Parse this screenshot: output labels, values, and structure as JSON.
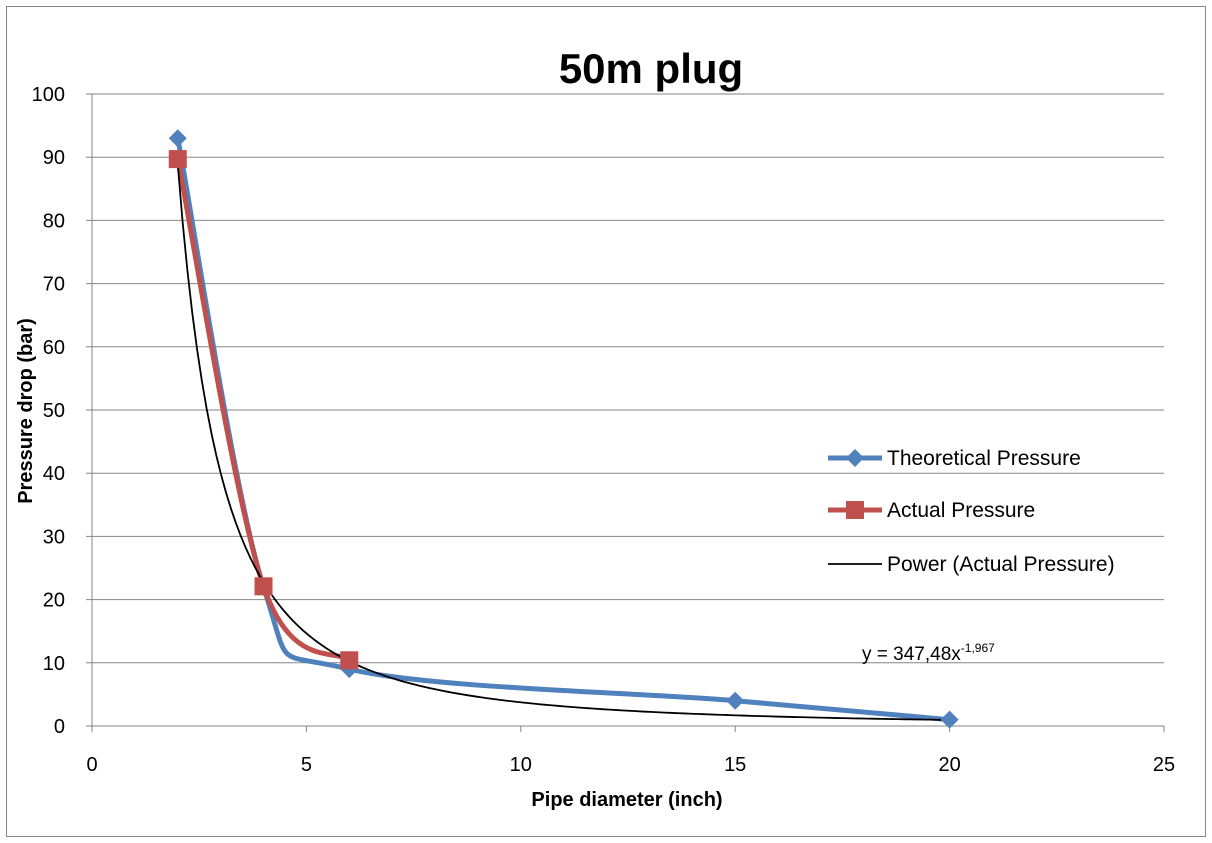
{
  "chart_data": {
    "type": "scatter",
    "title": "50m plug",
    "xlabel": "Pipe diameter (inch)",
    "ylabel": "Pressure drop (bar)",
    "xlim": [
      0,
      25
    ],
    "ylim": [
      0,
      100
    ],
    "xticks": [
      0,
      5,
      10,
      15,
      20,
      25
    ],
    "yticks": [
      0,
      10,
      20,
      30,
      40,
      50,
      60,
      70,
      80,
      90,
      100
    ],
    "grid": "horizontal",
    "legend_position": "right",
    "series": [
      {
        "name": "Theoretical Pressure",
        "color": "#4F81BD",
        "marker": "diamond",
        "smooth": true,
        "x": [
          2,
          4,
          6,
          15,
          20
        ],
        "y": [
          93,
          22,
          9,
          4,
          1
        ]
      },
      {
        "name": "Actual Pressure",
        "color": "#C0504D",
        "marker": "square",
        "smooth": true,
        "x": [
          2,
          4,
          6
        ],
        "y": [
          89.7,
          22.1,
          10.4
        ]
      },
      {
        "name": "Power (Actual Pressure)",
        "color": "#000000",
        "type": "trendline",
        "model": "power",
        "coefficient": 347.48,
        "exponent": -1.967,
        "x_range": [
          2,
          20
        ]
      }
    ],
    "trendline_equation": {
      "prefix": "y = 347,48x",
      "exponent": "-1,967"
    }
  }
}
